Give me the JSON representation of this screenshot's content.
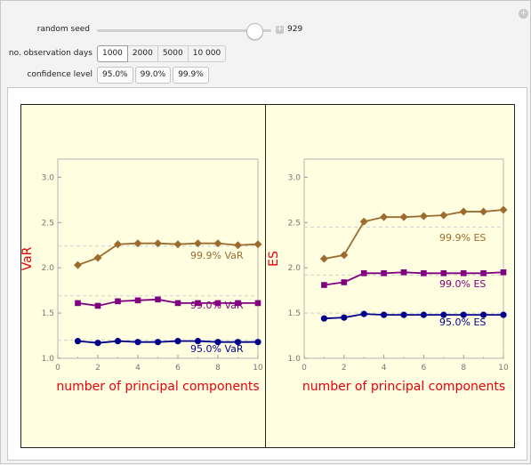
{
  "controls": {
    "seed": {
      "label": "random seed",
      "value": "929",
      "fraction": 0.86
    },
    "days": {
      "label": "no. observation days",
      "options": [
        "1000",
        "2000",
        "5000",
        "10 000"
      ],
      "selected": 0
    },
    "confidence": {
      "label": "confidence level",
      "options": [
        "95.0%",
        "99.0%",
        "99.9%"
      ]
    }
  },
  "colors": {
    "c95": "#00008b",
    "c99": "#800080",
    "c999": "#9c6b30",
    "axis_label": "#e8000b",
    "plot_bg": "#fffee0"
  },
  "chart_data": [
    {
      "type": "line",
      "ylabel": "VaR",
      "xlabel": "number of principal components",
      "xlim": [
        0,
        10
      ],
      "ylim": [
        1.0,
        3.2
      ],
      "x_ticks": [
        "0",
        "2",
        "4",
        "6",
        "8",
        "10"
      ],
      "y_ticks": [
        "1.0",
        "1.5",
        "2.0",
        "2.5",
        "3.0"
      ],
      "x": [
        1,
        2,
        3,
        4,
        5,
        6,
        7,
        8,
        9,
        10
      ],
      "series": [
        {
          "name": "99.9% VaR",
          "marker": "diamond",
          "values": [
            2.03,
            2.11,
            2.26,
            2.27,
            2.27,
            2.26,
            2.27,
            2.27,
            2.25,
            2.26
          ],
          "reference": 2.24
        },
        {
          "name": "99.0% VaR",
          "marker": "square",
          "values": [
            1.61,
            1.58,
            1.63,
            1.64,
            1.65,
            1.61,
            1.61,
            1.61,
            1.61,
            1.61
          ],
          "reference": 1.69
        },
        {
          "name": "95.0% VaR",
          "marker": "circle",
          "values": [
            1.19,
            1.17,
            1.19,
            1.18,
            1.18,
            1.19,
            1.19,
            1.18,
            1.18,
            1.18
          ],
          "reference": 1.2
        }
      ]
    },
    {
      "type": "line",
      "ylabel": "ES",
      "xlabel": "number of principal components",
      "xlim": [
        0,
        10
      ],
      "ylim": [
        1.0,
        3.2
      ],
      "x_ticks": [
        "0",
        "2",
        "4",
        "6",
        "8",
        "10"
      ],
      "y_ticks": [
        "1.0",
        "1.5",
        "2.0",
        "2.5",
        "3.0"
      ],
      "x": [
        1,
        2,
        3,
        4,
        5,
        6,
        7,
        8,
        9,
        10
      ],
      "series": [
        {
          "name": "99.9% ES",
          "marker": "diamond",
          "values": [
            2.1,
            2.14,
            2.51,
            2.56,
            2.56,
            2.57,
            2.58,
            2.62,
            2.62,
            2.64
          ],
          "reference": 2.45
        },
        {
          "name": "99.0% ES",
          "marker": "square",
          "values": [
            1.81,
            1.84,
            1.94,
            1.94,
            1.95,
            1.94,
            1.94,
            1.94,
            1.94,
            1.95
          ],
          "reference": 1.92
        },
        {
          "name": "95.0% ES",
          "marker": "circle",
          "values": [
            1.44,
            1.45,
            1.49,
            1.48,
            1.48,
            1.48,
            1.48,
            1.48,
            1.48,
            1.48
          ],
          "reference": 1.5
        }
      ]
    }
  ]
}
